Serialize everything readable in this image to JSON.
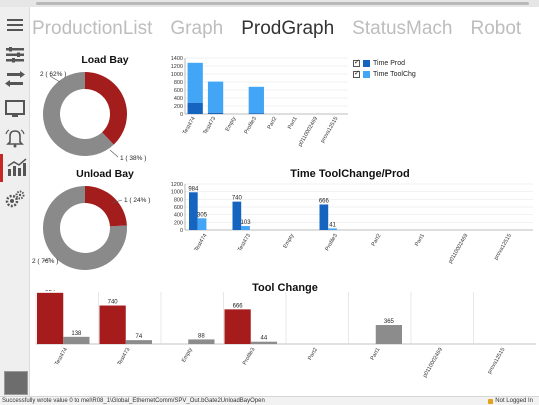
{
  "tabs": [
    {
      "label": "ProductionList",
      "active": false
    },
    {
      "label": "Graph",
      "active": false
    },
    {
      "label": "ProdGraph",
      "active": true
    },
    {
      "label": "StatusMach",
      "active": false
    },
    {
      "label": "Robot",
      "active": false
    }
  ],
  "sidebar": {
    "items": [
      {
        "icon": "menu-icon"
      },
      {
        "icon": "list-settings-icon"
      },
      {
        "icon": "transfer-icon"
      },
      {
        "icon": "monitor-icon"
      },
      {
        "icon": "alarm-bell-icon"
      },
      {
        "icon": "chart-trend-icon",
        "active": true
      },
      {
        "icon": "gears-icon"
      }
    ]
  },
  "colors": {
    "donut_red": "#a41d1d",
    "donut_grey": "#8a8a8a",
    "bar_blue_dark": "#1565c0",
    "bar_blue_light": "#42a5f5",
    "bar_red": "#a61b1b",
    "bar_grey": "#8c8c8c"
  },
  "load_bay": {
    "title": "Load Bay",
    "chart_data": {
      "type": "pie",
      "slices": [
        {
          "label": "2 ( 62% )",
          "value": 62
        },
        {
          "label": "1 ( 38% )",
          "value": 38
        }
      ]
    }
  },
  "unload_bay": {
    "title": "Unload Bay",
    "chart_data": {
      "type": "pie",
      "slices": [
        {
          "label": "1 ( 24% )",
          "value": 24
        },
        {
          "label": "2 ( 76% )",
          "value": 76
        }
      ]
    }
  },
  "time_chart": {
    "legend": [
      {
        "label": "Time Prod",
        "color": "#1565c0",
        "checked": true
      },
      {
        "label": "Time ToolChg",
        "color": "#42a5f5",
        "checked": true
      }
    ],
    "chart_data": {
      "type": "bar",
      "categories": [
        "Test474",
        "Test473",
        "Empty",
        "Profile3",
        "Part2",
        "Part1",
        "p0110002469",
        "prova12515"
      ],
      "series": [
        {
          "name": "Time Prod",
          "values": [
            280,
            30,
            0,
            20,
            0,
            0,
            0,
            0
          ]
        },
        {
          "name": "Time ToolChg",
          "values": [
            1000,
            780,
            0,
            660,
            0,
            0,
            0,
            0
          ]
        }
      ],
      "yticks": [
        0,
        200,
        400,
        600,
        800,
        1000,
        1200,
        1400
      ],
      "ylim": [
        0,
        1400
      ]
    }
  },
  "time_toolchange_prod": {
    "title": "Time ToolChange/Prod",
    "chart_data": {
      "type": "bar",
      "categories": [
        "Test474",
        "Test473",
        "Empty",
        "Profile3",
        "Part2",
        "Part1",
        "p0110002469",
        "prova12515"
      ],
      "series": [
        {
          "values": [
            984,
            740,
            0,
            666,
            0,
            0,
            0,
            0
          ]
        },
        {
          "values": [
            305,
            103,
            0,
            41,
            0,
            0,
            0,
            0
          ]
        }
      ],
      "labels_a": [
        "984",
        "740",
        "",
        "666",
        "",
        "",
        "",
        ""
      ],
      "labels_b": [
        "305",
        "103",
        "",
        "41",
        "",
        "",
        "",
        ""
      ],
      "yticks": [
        0,
        200,
        400,
        600,
        800,
        1000,
        1200
      ],
      "ylim": [
        0,
        1200
      ]
    }
  },
  "tool_change": {
    "title": "Tool Change",
    "chart_data": {
      "type": "bar",
      "categories": [
        "Test474",
        "Test473",
        "Empty",
        "Profile3",
        "Part2",
        "Part1",
        "p0110002469",
        "prova12515"
      ],
      "series": [
        {
          "values": [
            984,
            740,
            0,
            666,
            0,
            0,
            0,
            0
          ]
        },
        {
          "values": [
            138,
            74,
            88,
            44,
            0,
            365,
            0,
            0
          ]
        }
      ],
      "labels_a": [
        "984",
        "740",
        "",
        "666",
        "",
        "",
        "",
        ""
      ],
      "labels_b": [
        "138",
        "74",
        "88",
        "44",
        "",
        "365",
        "",
        ""
      ],
      "ylim": [
        0,
        1000
      ]
    }
  },
  "status": {
    "message": "Successfully wrote value 0 to mel\\R08_1\\Global_EthernetComm/SPV_Out.bGate2UnloadBayOpen",
    "login": "Not Logged In"
  }
}
